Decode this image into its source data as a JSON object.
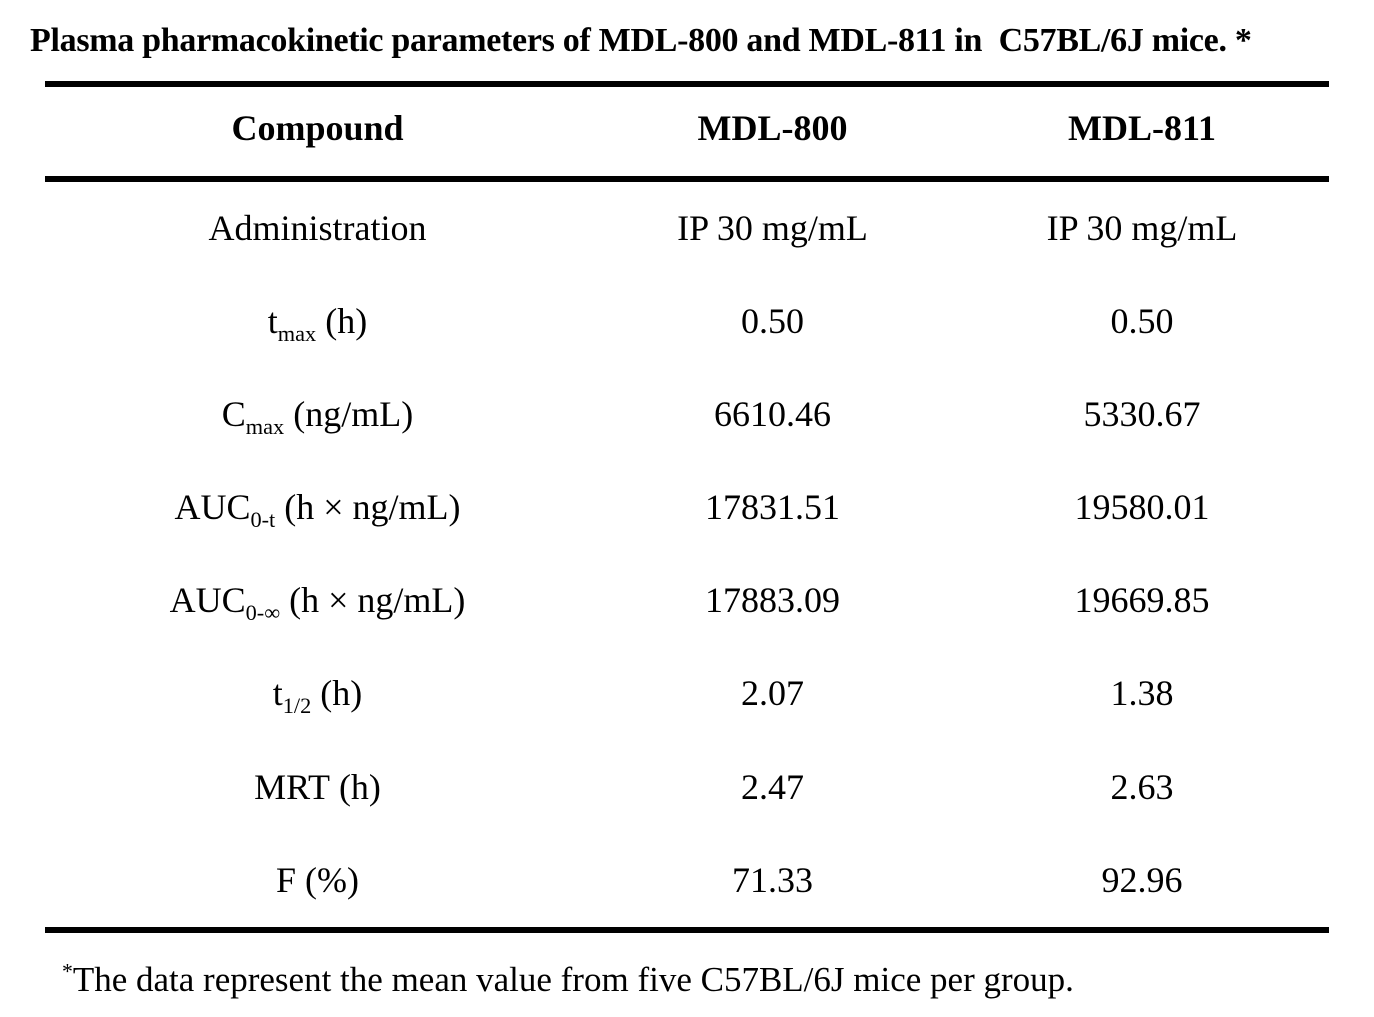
{
  "caption": "Plasma pharmacokinetic parameters of MDL-800 and MDL-811 in  C57BL/6J mice. *",
  "table": {
    "columns": [
      "Compound",
      "MDL-800",
      "MDL-811"
    ],
    "rows": [
      {
        "param": {
          "base": "Administration",
          "sub": "",
          "rest": ""
        },
        "mdl800": "IP 30 mg/mL",
        "mdl811": "IP 30 mg/mL"
      },
      {
        "param": {
          "base": "t",
          "sub": "max",
          "rest": " (h)"
        },
        "mdl800": "0.50",
        "mdl811": "0.50"
      },
      {
        "param": {
          "base": "C",
          "sub": "max",
          "rest": " (ng/mL)"
        },
        "mdl800": "6610.46",
        "mdl811": "5330.67"
      },
      {
        "param": {
          "base": "AUC",
          "sub": "0-t",
          "rest": " (h × ng/mL)"
        },
        "mdl800": "17831.51",
        "mdl811": "19580.01"
      },
      {
        "param": {
          "base": "AUC",
          "sub": "0-∞",
          "rest": " (h × ng/mL)"
        },
        "mdl800": "17883.09",
        "mdl811": "19669.85"
      },
      {
        "param": {
          "base": "t",
          "sub": "1/2",
          "rest": " (h)"
        },
        "mdl800": "2.07",
        "mdl811": "1.38"
      },
      {
        "param": {
          "base": "MRT",
          "sub": "",
          "rest": " (h)"
        },
        "mdl800": "2.47",
        "mdl811": "2.63"
      },
      {
        "param": {
          "base": "F",
          "sub": "",
          "rest": " (%)"
        },
        "mdl800": "71.33",
        "mdl811": "92.96"
      }
    ]
  },
  "footnote": {
    "marker": "*",
    "text": "The data represent the mean value from five C57BL/6J mice per group."
  },
  "colors": {
    "background": "#ffffff",
    "text": "#000000",
    "rule": "#000000"
  }
}
